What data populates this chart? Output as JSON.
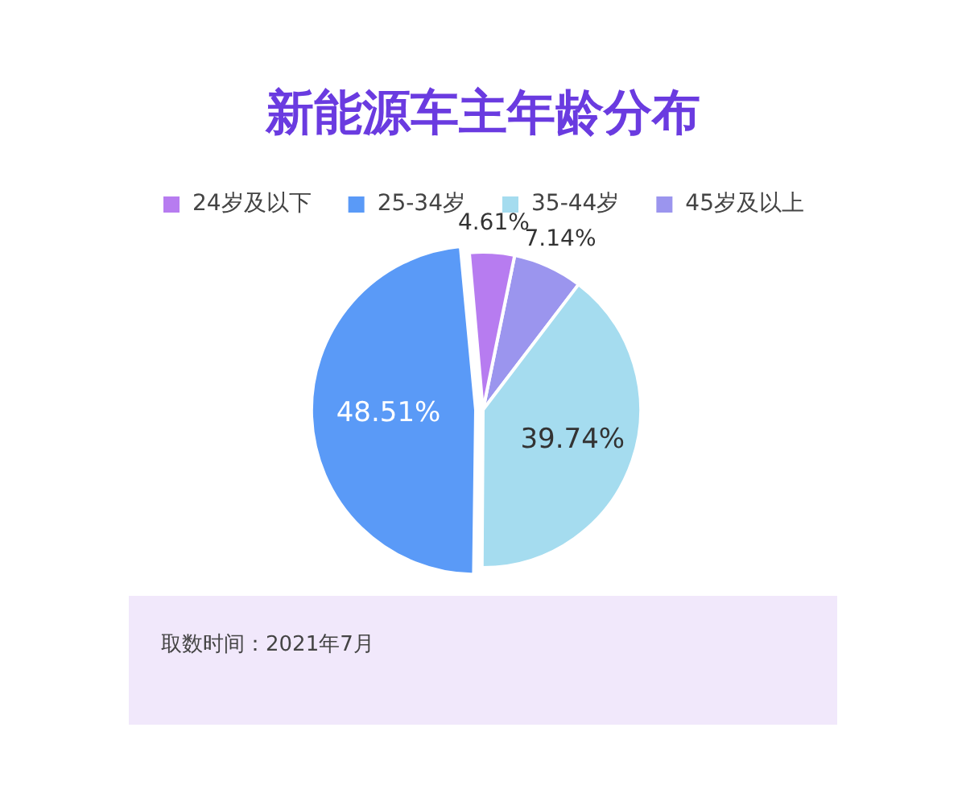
{
  "chart_data": {
    "type": "pie",
    "title": "新能源车主年龄分布",
    "categories": [
      "24岁及以下",
      "25-34岁",
      "35-44岁",
      "45岁及以上"
    ],
    "values": [
      4.61,
      48.51,
      39.74,
      7.14
    ],
    "colors": [
      "#b77cf0",
      "#5a9af7",
      "#a5dcef",
      "#9b95ee"
    ],
    "value_labels": [
      "4.61%",
      "48.51%",
      "39.74%",
      "7.14%"
    ],
    "legend": "top",
    "annotations": [
      "取数时间：2021年7月"
    ]
  }
}
